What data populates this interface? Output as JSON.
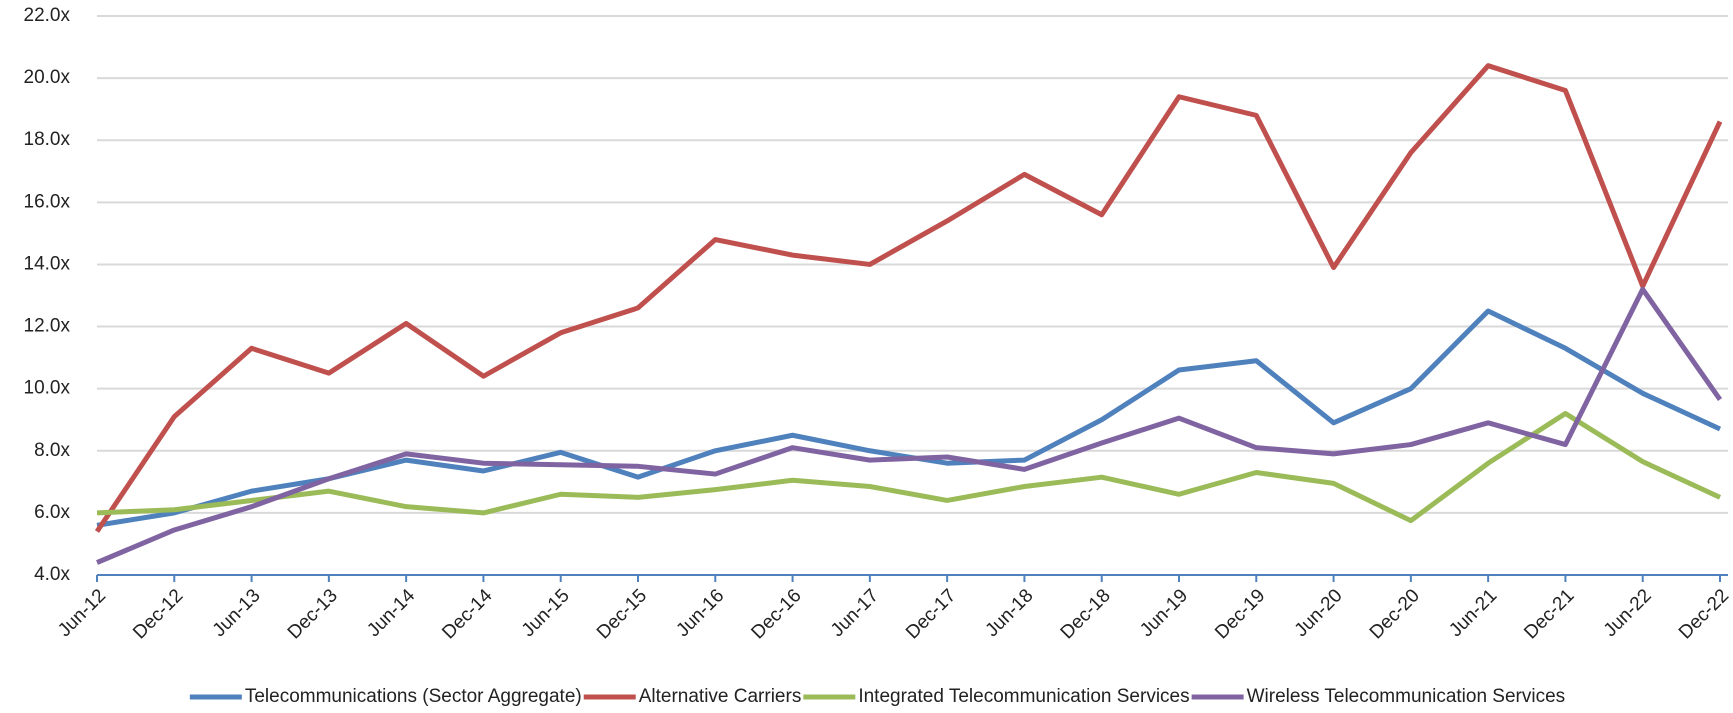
{
  "chart_data": {
    "type": "line",
    "categories": [
      "Jun-12",
      "Dec-12",
      "Jun-13",
      "Dec-13",
      "Jun-14",
      "Dec-14",
      "Jun-15",
      "Dec-15",
      "Jun-16",
      "Dec-16",
      "Jun-17",
      "Dec-17",
      "Jun-18",
      "Dec-18",
      "Jun-19",
      "Dec-19",
      "Jun-20",
      "Dec-20",
      "Jun-21",
      "Dec-21",
      "Jun-22",
      "Dec-22"
    ],
    "series": [
      {
        "name": "Telecommunications (Sector Aggregate)",
        "color": "#4f81bd",
        "values": [
          5.6,
          6.0,
          6.7,
          7.1,
          7.7,
          7.35,
          7.95,
          7.15,
          8.0,
          8.5,
          8.0,
          7.6,
          7.7,
          9.0,
          10.6,
          10.9,
          8.9,
          10.0,
          12.5,
          11.3,
          9.85,
          8.7
        ]
      },
      {
        "name": "Alternative Carriers",
        "color": "#c0504d",
        "values": [
          5.4,
          9.1,
          11.3,
          10.5,
          12.1,
          10.4,
          11.8,
          12.6,
          14.8,
          14.3,
          14.0,
          15.4,
          16.9,
          15.6,
          19.4,
          18.8,
          13.9,
          17.6,
          20.4,
          19.6,
          13.3,
          18.6
        ]
      },
      {
        "name": "Integrated Telecommunication Services",
        "color": "#9bbb59",
        "values": [
          6.0,
          6.1,
          6.4,
          6.7,
          6.2,
          6.0,
          6.6,
          6.5,
          6.75,
          7.05,
          6.85,
          6.4,
          6.85,
          7.15,
          6.6,
          7.3,
          6.95,
          5.75,
          7.6,
          9.2,
          7.65,
          6.5
        ]
      },
      {
        "name": "Wireless Telecommunication Services",
        "color": "#8064a2",
        "values": [
          4.4,
          5.45,
          6.2,
          7.1,
          7.9,
          7.6,
          7.55,
          7.5,
          7.25,
          8.1,
          7.7,
          7.8,
          7.4,
          8.25,
          9.05,
          8.1,
          7.9,
          8.2,
          8.9,
          8.2,
          13.2,
          9.65
        ]
      }
    ],
    "ylim": [
      4,
      22
    ],
    "yticks": [
      {
        "value": 4,
        "label": "4.0x"
      },
      {
        "value": 6,
        "label": "6.0x"
      },
      {
        "value": 8,
        "label": "8.0x"
      },
      {
        "value": 10,
        "label": "10.0x"
      },
      {
        "value": 12,
        "label": "12.0x"
      },
      {
        "value": 14,
        "label": "14.0x"
      },
      {
        "value": 16,
        "label": "16.0x"
      },
      {
        "value": 18,
        "label": "18.0x"
      },
      {
        "value": 20,
        "label": "20.0x"
      },
      {
        "value": 22,
        "label": "22.0x"
      }
    ],
    "grid": true,
    "legend": "bottom"
  }
}
